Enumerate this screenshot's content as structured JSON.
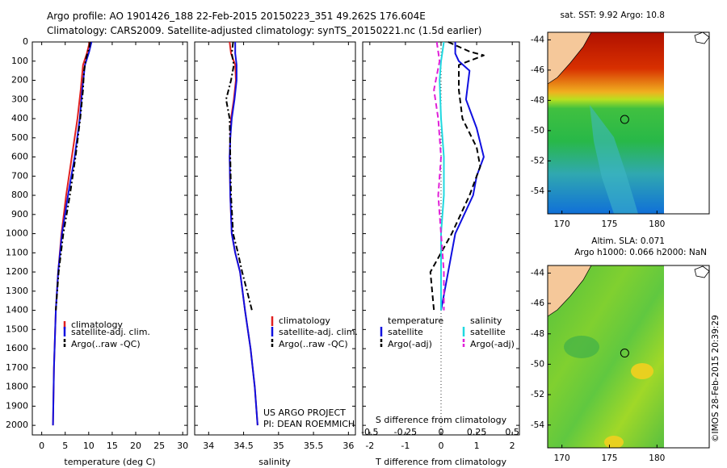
{
  "header": {
    "line1": "Argo profile: AO 1901426_188 22-Feb-2015 20150223_351 49.262S 176.604E",
    "line2": "Climatology: CARS2009. Satellite-adjusted climatology: synTS_20150221.nc (1.5d earlier)"
  },
  "colors": {
    "climatology": "#e02020",
    "satellite": "#1010e0",
    "argo": "#000000",
    "salinity_satellite": "#20d8e0",
    "salinity_argo": "#e020d8"
  },
  "chart_data": [
    {
      "type": "line",
      "xlabel": "temperature (deg C)",
      "ylabel": "",
      "xlim": [
        -2,
        31
      ],
      "ylim": [
        0,
        2050
      ],
      "y_reversed": true,
      "xticks": [
        0,
        5,
        10,
        15,
        20,
        25,
        30
      ],
      "yticks": [
        0,
        100,
        200,
        300,
        400,
        500,
        600,
        700,
        800,
        900,
        1000,
        1100,
        1200,
        1300,
        1400,
        1500,
        1600,
        1700,
        1800,
        1900,
        2000
      ],
      "legend": [
        "climatology",
        "satellite-adj. clim.",
        "Argo(..raw -QC)"
      ],
      "series": [
        {
          "name": "climatology",
          "style": "solid",
          "points": [
            [
              10.2,
              0
            ],
            [
              9.6,
              60
            ],
            [
              8.8,
              120
            ],
            [
              8.3,
              250
            ],
            [
              7.6,
              400
            ],
            [
              6.4,
              600
            ],
            [
              5.2,
              800
            ],
            [
              4.2,
              1000
            ],
            [
              3.5,
              1200
            ],
            [
              3.0,
              1400
            ],
            [
              2.6,
              1700
            ],
            [
              2.4,
              2000
            ]
          ]
        },
        {
          "name": "satellite-adj. clim.",
          "style": "solid",
          "points": [
            [
              10.6,
              0
            ],
            [
              10.1,
              50
            ],
            [
              9.2,
              120
            ],
            [
              8.6,
              250
            ],
            [
              8.1,
              400
            ],
            [
              7.0,
              600
            ],
            [
              5.6,
              800
            ],
            [
              4.3,
              1000
            ],
            [
              3.5,
              1200
            ],
            [
              3.0,
              1400
            ],
            [
              2.6,
              1700
            ],
            [
              2.4,
              2000
            ]
          ]
        },
        {
          "name": "Argo(..raw -QC)",
          "style": "dashdot",
          "points": [
            [
              10.3,
              0
            ],
            [
              10.1,
              30
            ],
            [
              9.5,
              80
            ],
            [
              9.0,
              150
            ],
            [
              8.8,
              250
            ],
            [
              8.2,
              400
            ],
            [
              7.2,
              600
            ],
            [
              6.0,
              800
            ],
            [
              4.6,
              1000
            ],
            [
              3.6,
              1200
            ],
            [
              3.0,
              1400
            ]
          ]
        }
      ]
    },
    {
      "type": "line",
      "xlabel": "salinity",
      "ylabel": "",
      "xlim": [
        33.8,
        36.1
      ],
      "ylim": [
        0,
        2050
      ],
      "y_reversed": true,
      "xticks": [
        34,
        34.5,
        35,
        35.5,
        36
      ],
      "yticks": [
        0,
        100,
        200,
        300,
        400,
        500,
        600,
        700,
        800,
        900,
        1000,
        1100,
        1200,
        1300,
        1400,
        1500,
        1600,
        1700,
        1800,
        1900,
        2000
      ],
      "legend": [
        "climatology",
        "satellite-adj. clim.",
        "Argo(..raw -QC)"
      ],
      "annotations": [
        "US ARGO PROJECT",
        "PI: DEAN ROEMMICH"
      ],
      "series": [
        {
          "name": "climatology",
          "style": "solid",
          "points": [
            [
              34.3,
              0
            ],
            [
              34.32,
              60
            ],
            [
              34.38,
              120
            ],
            [
              34.39,
              200
            ],
            [
              34.36,
              300
            ],
            [
              34.32,
              400
            ],
            [
              34.31,
              500
            ],
            [
              34.3,
              600
            ],
            [
              34.31,
              800
            ],
            [
              34.33,
              1000
            ],
            [
              34.38,
              1100
            ],
            [
              34.45,
              1200
            ],
            [
              34.52,
              1400
            ],
            [
              34.6,
              1600
            ],
            [
              34.66,
              1800
            ],
            [
              34.7,
              2000
            ]
          ]
        },
        {
          "name": "satellite-adj. clim.",
          "style": "solid",
          "points": [
            [
              34.38,
              0
            ],
            [
              34.38,
              60
            ],
            [
              34.4,
              120
            ],
            [
              34.4,
              200
            ],
            [
              34.37,
              300
            ],
            [
              34.33,
              400
            ],
            [
              34.31,
              500
            ],
            [
              34.3,
              600
            ],
            [
              34.31,
              800
            ],
            [
              34.33,
              1000
            ],
            [
              34.38,
              1100
            ],
            [
              34.45,
              1200
            ],
            [
              34.52,
              1400
            ],
            [
              34.6,
              1600
            ],
            [
              34.66,
              1800
            ],
            [
              34.7,
              2000
            ]
          ]
        },
        {
          "name": "Argo(..raw -QC)",
          "style": "dashdot",
          "points": [
            [
              34.35,
              0
            ],
            [
              34.33,
              60
            ],
            [
              34.36,
              120
            ],
            [
              34.32,
              200
            ],
            [
              34.25,
              300
            ],
            [
              34.3,
              400
            ],
            [
              34.31,
              600
            ],
            [
              34.32,
              800
            ],
            [
              34.35,
              1000
            ],
            [
              34.42,
              1100
            ],
            [
              34.48,
              1200
            ],
            [
              34.55,
              1300
            ],
            [
              34.62,
              1400
            ]
          ]
        }
      ]
    },
    {
      "type": "line",
      "xlabel": "T difference from climatology",
      "xlabel_top": "S difference from climatology",
      "ylabel": "",
      "xlim": [
        -2.2,
        2.2
      ],
      "ylim": [
        0,
        2050
      ],
      "y_reversed": true,
      "xticks": [
        -2,
        -1,
        0,
        1,
        2
      ],
      "xticks_top": [
        "-0.5",
        "-0.25",
        "0",
        "0.25",
        "0.5"
      ],
      "yticks": [
        0,
        100,
        200,
        300,
        400,
        500,
        600,
        700,
        800,
        900,
        1000,
        1100,
        1200,
        1300,
        1400,
        1500,
        1600,
        1700,
        1800,
        1900,
        2000
      ],
      "legend_headers": [
        "temperature",
        "salinity"
      ],
      "legend": [
        "satellite",
        "Argo(-adj)",
        "satellite",
        "Argo(-adj)"
      ],
      "series": [
        {
          "name": "satellite",
          "group": "temperature",
          "style": "solid",
          "points": [
            [
              0.4,
              0
            ],
            [
              0.4,
              60
            ],
            [
              0.5,
              100
            ],
            [
              0.8,
              150
            ],
            [
              0.7,
              300
            ],
            [
              1.0,
              450
            ],
            [
              1.2,
              600
            ],
            [
              1.0,
              700
            ],
            [
              0.9,
              800
            ],
            [
              0.4,
              1000
            ],
            [
              0.2,
              1200
            ],
            [
              0,
              1400
            ]
          ]
        },
        {
          "name": "Argo(-adj)",
          "group": "temperature",
          "style": "dashed",
          "points": [
            [
              0.2,
              0
            ],
            [
              0.8,
              50
            ],
            [
              1.2,
              70
            ],
            [
              0.5,
              120
            ],
            [
              0.5,
              250
            ],
            [
              0.6,
              400
            ],
            [
              1.0,
              550
            ],
            [
              1.1,
              650
            ],
            [
              0.8,
              800
            ],
            [
              0.3,
              1000
            ],
            [
              -0.3,
              1200
            ],
            [
              -0.2,
              1400
            ]
          ]
        },
        {
          "name": "satellite",
          "group": "salinity",
          "style": "solid",
          "points": [
            [
              0.02,
              0
            ],
            [
              0.0,
              100
            ],
            [
              -0.01,
              200
            ],
            [
              0.0,
              400
            ],
            [
              0.02,
              600
            ],
            [
              0.02,
              800
            ],
            [
              0.0,
              1000
            ],
            [
              0.0,
              1200
            ],
            [
              0.0,
              1400
            ]
          ]
        },
        {
          "name": "Argo(-adj)",
          "group": "salinity",
          "style": "dashed",
          "points": [
            [
              -0.03,
              0
            ],
            [
              -0.01,
              100
            ],
            [
              -0.05,
              250
            ],
            [
              -0.02,
              400
            ],
            [
              0.0,
              600
            ],
            [
              -0.02,
              800
            ],
            [
              0.0,
              1000
            ],
            [
              0.02,
              1200
            ],
            [
              0.02,
              1400
            ]
          ]
        }
      ]
    }
  ],
  "maps": {
    "sst_title": "sat. SST: 9.92 Argo: 10.8",
    "sla_title1": "Altim. SLA: 0.071",
    "sla_title2": "Argo h1000: 0.066 h2000: NaN",
    "lat_labels": [
      "-44",
      "-46",
      "-48",
      "-50",
      "-52",
      "-54"
    ],
    "lon_labels": [
      "170",
      "175",
      "180"
    ],
    "marker_label": "Argo position"
  },
  "footer": {
    "credit": "©IMOS 28-Feb-2015 20:39:29"
  }
}
